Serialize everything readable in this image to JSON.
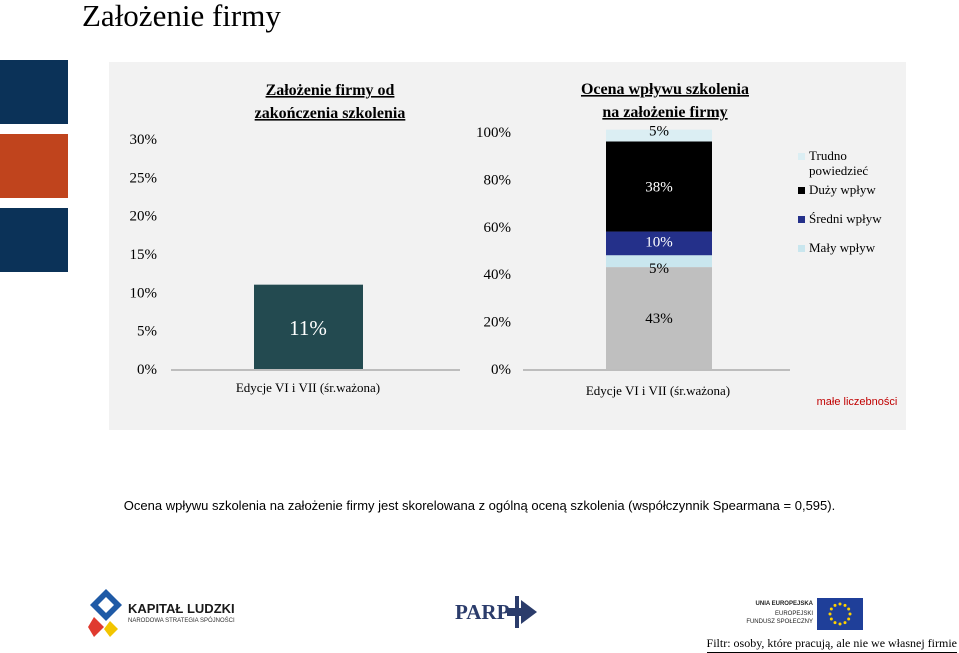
{
  "slide": {
    "title": "Założenie firmy",
    "caption": "Ocena wpływu szkolenia na założenie firmy jest skorelowana z ogólną oceną szkolenia (współczynnik Spearmana = 0,595).",
    "note": "małe liczebności",
    "footnote": "Filtr: osoby, które pracują, ale nie we własnej firmie",
    "accent_colors": [
      "#0b3258",
      "#c0441d",
      "#0b3258"
    ]
  },
  "logos": {
    "kapital": {
      "title": "KAPITAŁ LUDZKI",
      "subtitle": "NARODOWA STRATEGIA SPÓJNOŚCI"
    },
    "parp": {
      "text": "PARP"
    },
    "ue": {
      "line1": "UNIA EUROPEJSKA",
      "line2": "EUROPEJSKI",
      "line3": "FUNDUSZ SPOŁECZNY"
    }
  },
  "chart_data": [
    {
      "type": "bar",
      "title": "Założenie firmy od zakończenia szkolenia",
      "title_lines": [
        "Założenie firmy od",
        "zakończenia szkolenia"
      ],
      "categories": [
        "Edycje VI i VII (śr.ważona)"
      ],
      "values": [
        11
      ],
      "value_labels": [
        "11%"
      ],
      "ylim": [
        0,
        30
      ],
      "yticks": [
        "0%",
        "5%",
        "10%",
        "15%",
        "20%",
        "25%",
        "30%"
      ],
      "color": "#234a50",
      "grid": false
    },
    {
      "type": "bar",
      "stacked": true,
      "title": "Ocena wpływu szkolenia na założenie firmy",
      "title_lines": [
        "Ocena wpływu szkolenia",
        "na założenie firmy"
      ],
      "categories": [
        "Edycje VI i VII (śr.ważona)"
      ],
      "series": [
        {
          "name": "",
          "values": [
            43
          ],
          "label": "43%",
          "color": "#bfbfbf"
        },
        {
          "name": "Mały wpływ",
          "values": [
            5
          ],
          "label": "5%",
          "color": "#c9e6ee"
        },
        {
          "name": "Średni wpływ",
          "values": [
            10
          ],
          "label": "10%",
          "color": "#24308a"
        },
        {
          "name": "Duży wpływ",
          "values": [
            38
          ],
          "label": "38%",
          "color": "#000000"
        },
        {
          "name": "Trudno powiedzieć",
          "values": [
            5
          ],
          "label": "5%",
          "color": "#dbeef3"
        }
      ],
      "legend": [
        "Trudno powiedzieć",
        "Duży wpływ",
        "Średni wpływ",
        "Mały wpływ"
      ],
      "legend_placement": "right",
      "ylim": [
        0,
        100
      ],
      "yticks": [
        "0%",
        "20%",
        "40%",
        "60%",
        "80%",
        "100%"
      ],
      "grid": false
    }
  ]
}
